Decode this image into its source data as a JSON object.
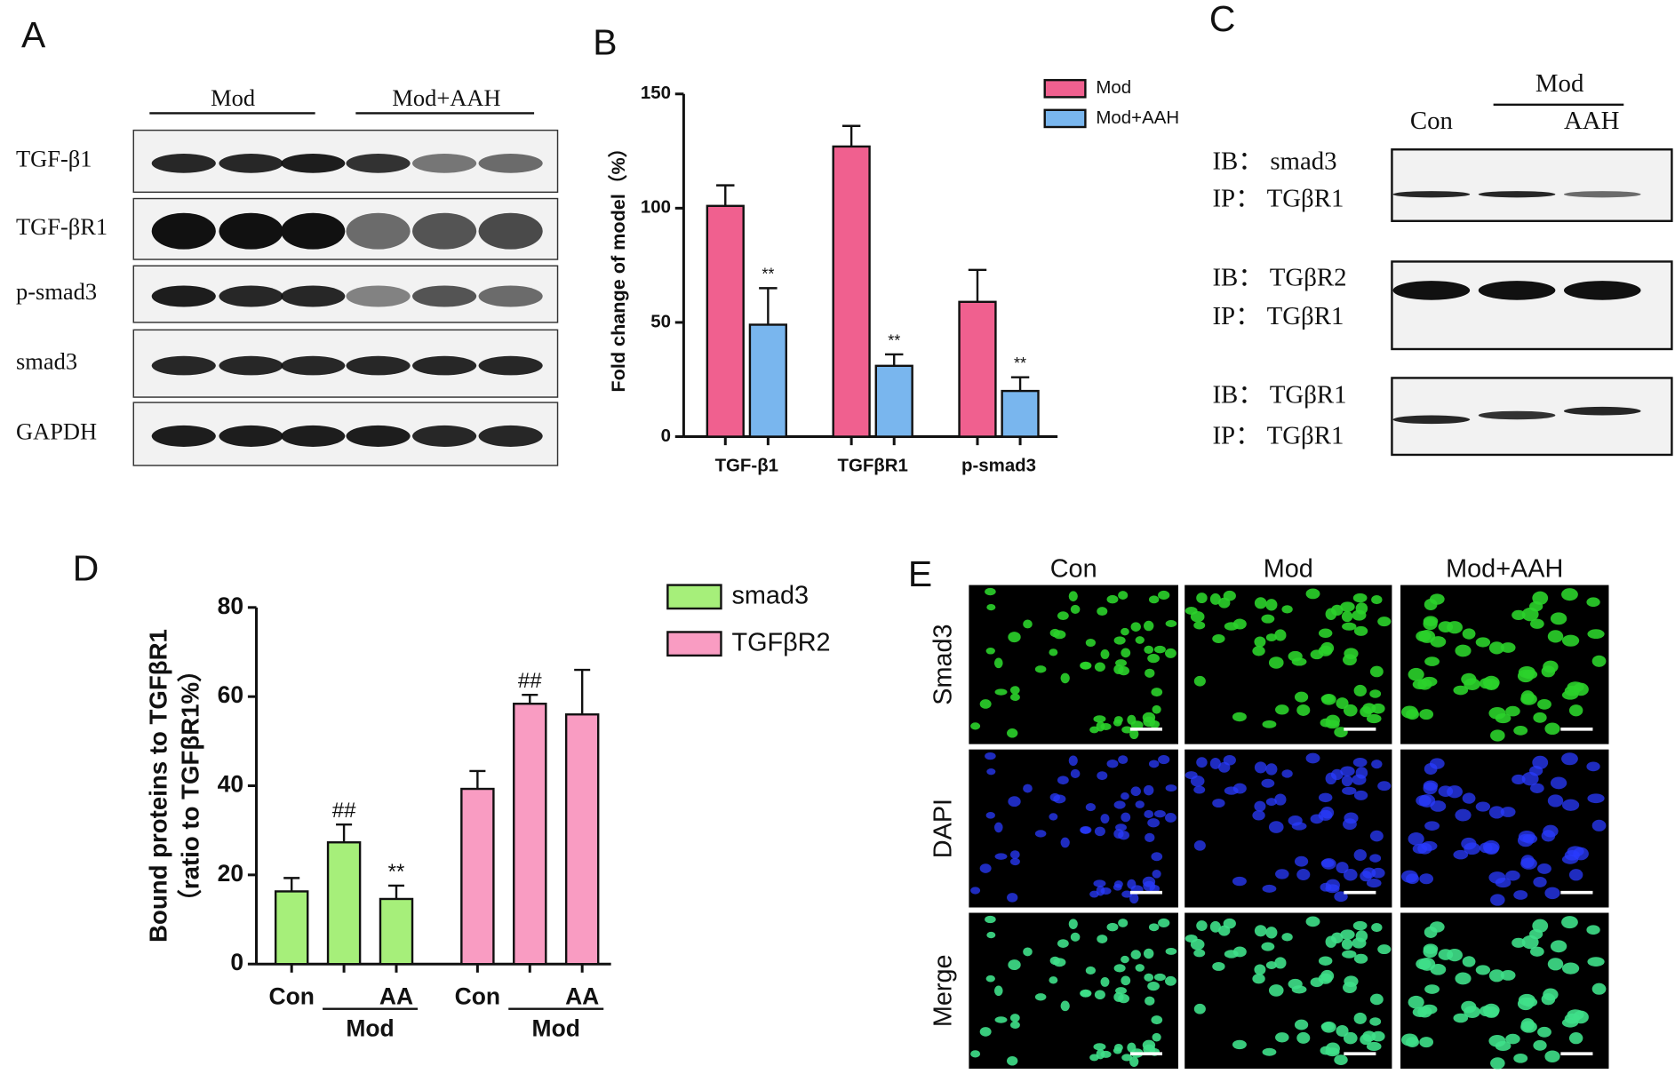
{
  "panel_labels": [
    "A",
    "B",
    "C",
    "D",
    "E"
  ],
  "blot_a": {
    "groups": [
      "Mod",
      "Mod+AAH"
    ],
    "rows": [
      "TGF-β1",
      "TGF-βR1",
      "p-smad3",
      "smad3",
      "GAPDH"
    ]
  },
  "blot_c": {
    "group": "Mod",
    "lanes": [
      "Con",
      "AAH"
    ],
    "rows": [
      [
        "IB： smad3",
        "IP： TGβR1"
      ],
      [
        "IB： TGβR2",
        "IP： TGβR1"
      ],
      [
        "IB： TGβR1",
        "IP： TGβR1"
      ]
    ]
  },
  "chart_data": [
    {
      "type": "bar",
      "ylabel": "Fold change of model（%）",
      "categories": [
        "TGF-β1",
        "TGFβR1",
        "p-smad3"
      ],
      "series": [
        {
          "name": "Mod",
          "color": "#f0608f",
          "values": [
            101,
            127,
            59
          ],
          "errors": [
            9,
            9,
            14
          ]
        },
        {
          "name": "Mod+AAH",
          "color": "#79b6ee",
          "values": [
            49,
            31,
            20
          ],
          "errors": [
            16,
            5,
            6
          ],
          "annotations": [
            "**",
            "**",
            "**"
          ]
        }
      ],
      "ylim": [
        0,
        150
      ],
      "yticks": [
        0,
        50,
        100,
        150
      ]
    },
    {
      "type": "bar",
      "ylabel": [
        "Bound proteins to TGFβR1",
        "（ratio to TGFβR1%）"
      ],
      "categories": [
        "Con",
        null,
        "AA"
      ],
      "group_label": "Mod",
      "series": [
        {
          "name": "smad3",
          "color": "#a6ef7a",
          "values": [
            16.3,
            27.3,
            14.6
          ],
          "errors": [
            3,
            4,
            3
          ],
          "annotations": [
            null,
            "##",
            "**"
          ]
        },
        {
          "name": "TGFβR2",
          "color": "#f99cc2",
          "values": [
            39.3,
            58.4,
            56
          ],
          "errors": [
            4,
            2,
            10
          ],
          "annotations": [
            null,
            "##",
            null
          ]
        }
      ],
      "ylim": [
        0,
        80
      ],
      "yticks": [
        0,
        20,
        40,
        60,
        80
      ]
    }
  ],
  "microscopy_e": {
    "columns": [
      "Con",
      "Mod",
      "Mod+AAH"
    ],
    "rows": [
      "Smad3",
      "DAPI",
      "Merge"
    ]
  }
}
